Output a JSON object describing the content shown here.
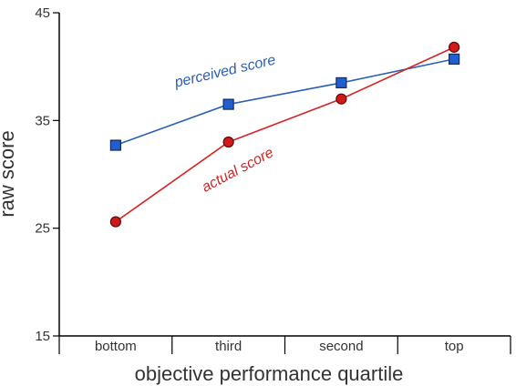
{
  "chart_data": {
    "type": "line",
    "categories": [
      "bottom",
      "third",
      "second",
      "top"
    ],
    "series": [
      {
        "name": "perceived score",
        "values": [
          32.7,
          36.5,
          38.5,
          40.7
        ],
        "color": "#1f5fcf",
        "line_color": "#2a5fb5",
        "marker": "square"
      },
      {
        "name": "actual score",
        "values": [
          25.6,
          33.0,
          37.0,
          41.8
        ],
        "color": "#d01a1a",
        "line_color": "#d42424",
        "marker": "circle"
      }
    ],
    "xlabel": "objective performance quartile",
    "ylabel": "raw score",
    "ylim": [
      15,
      45
    ],
    "yticks": [
      15,
      25,
      35,
      45
    ],
    "grid": false,
    "legend": "inline labels"
  }
}
